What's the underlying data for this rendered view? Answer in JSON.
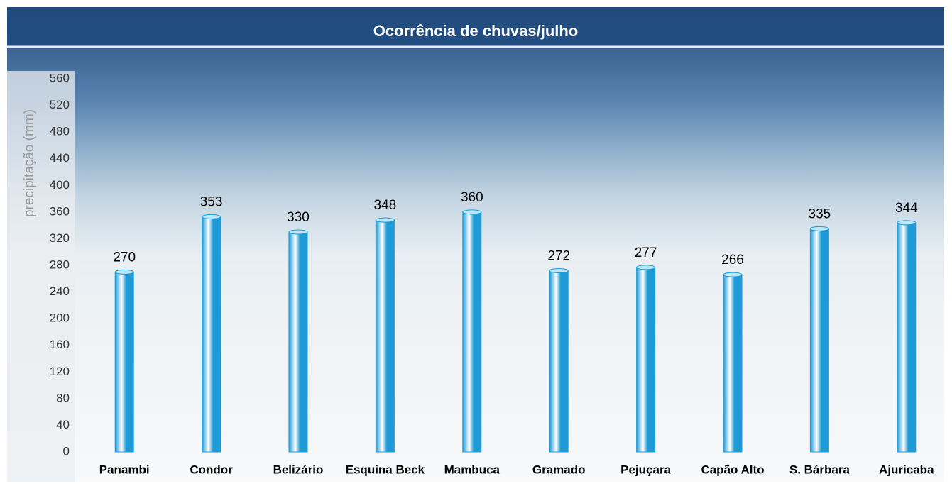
{
  "chart_data": {
    "type": "bar",
    "title": "Ocorrência de chuvas/julho",
    "y_label": "precipitação (mm)",
    "categories": [
      "Panambi",
      "Condor",
      "Belizário",
      "Esquina Beck",
      "Mambuca",
      "Gramado",
      "Pejuçara",
      "Capão Alto",
      "S. Bárbara",
      "Ajuricaba"
    ],
    "values": [
      270,
      353,
      330,
      348,
      360,
      272,
      277,
      266,
      335,
      344
    ],
    "color": "#1e9ad6",
    "ylim": [
      0,
      560
    ],
    "yticks": [
      0,
      40,
      80,
      120,
      160,
      200,
      240,
      280,
      320,
      360,
      400,
      440,
      480,
      520,
      560
    ]
  }
}
